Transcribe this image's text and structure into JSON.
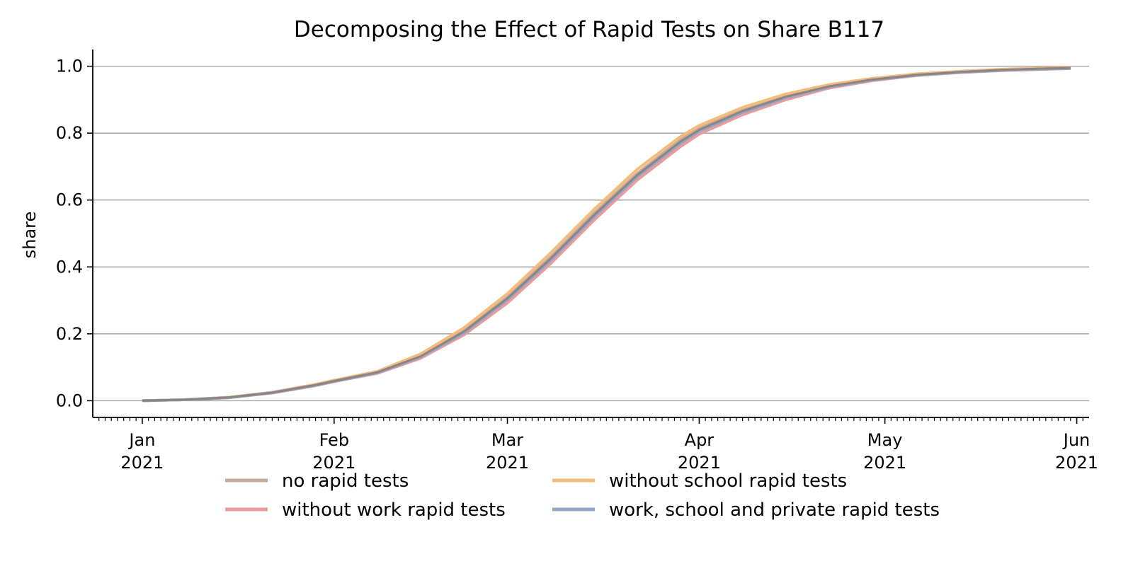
{
  "chart_data": {
    "type": "line",
    "title": "Decomposing the Effect of Rapid Tests on Share B117",
    "xlabel": "",
    "ylabel": "share",
    "xlim": [
      "2020-12-24",
      "2021-06-03"
    ],
    "ylim": [
      -0.05,
      1.05
    ],
    "y_ticks": [
      0.0,
      0.2,
      0.4,
      0.6,
      0.8,
      1.0
    ],
    "y_tick_labels": [
      "0.0",
      "0.2",
      "0.4",
      "0.6",
      "0.8",
      "1.0"
    ],
    "x_ticks": [
      {
        "date": "2021-01-01",
        "line1": "Jan",
        "line2": "2021"
      },
      {
        "date": "2021-02-01",
        "line1": "Feb",
        "line2": "2021"
      },
      {
        "date": "2021-03-01",
        "line1": "Mar",
        "line2": "2021"
      },
      {
        "date": "2021-04-01",
        "line1": "Apr",
        "line2": "2021"
      },
      {
        "date": "2021-05-01",
        "line1": "May",
        "line2": "2021"
      },
      {
        "date": "2021-06-01",
        "line1": "Jun",
        "line2": "2021"
      }
    ],
    "grid": "horizontal",
    "legend": "bottom-center",
    "x": [
      "2021-01-01",
      "2021-01-08",
      "2021-01-15",
      "2021-01-22",
      "2021-01-29",
      "2021-02-01",
      "2021-02-08",
      "2021-02-15",
      "2021-02-22",
      "2021-03-01",
      "2021-03-08",
      "2021-03-15",
      "2021-03-22",
      "2021-03-29",
      "2021-04-01",
      "2021-04-08",
      "2021-04-15",
      "2021-04-22",
      "2021-04-29",
      "2021-05-06",
      "2021-05-13",
      "2021-05-20",
      "2021-05-27",
      "2021-05-31"
    ],
    "series": [
      {
        "name": "no rapid tests",
        "color": "#c4ab9d",
        "values": [
          0.0,
          0.003,
          0.01,
          0.025,
          0.048,
          0.06,
          0.085,
          0.135,
          0.21,
          0.31,
          0.43,
          0.56,
          0.68,
          0.78,
          0.815,
          0.87,
          0.912,
          0.942,
          0.962,
          0.975,
          0.984,
          0.99,
          0.994,
          0.995
        ]
      },
      {
        "name": "without work rapid tests",
        "color": "#ef9a9a",
        "values": [
          0.0,
          0.003,
          0.009,
          0.023,
          0.045,
          0.057,
          0.082,
          0.127,
          0.197,
          0.292,
          0.41,
          0.54,
          0.66,
          0.76,
          0.797,
          0.855,
          0.9,
          0.935,
          0.957,
          0.972,
          0.981,
          0.987,
          0.991,
          0.993
        ]
      },
      {
        "name": "without school rapid tests",
        "color": "#f5bb7a",
        "values": [
          0.0,
          0.003,
          0.01,
          0.025,
          0.049,
          0.061,
          0.088,
          0.14,
          0.218,
          0.32,
          0.442,
          0.572,
          0.692,
          0.79,
          0.823,
          0.877,
          0.917,
          0.945,
          0.964,
          0.977,
          0.985,
          0.991,
          0.995,
          0.996
        ]
      },
      {
        "name": "work, school and private rapid tests",
        "color": "#90a8c4",
        "values": [
          0.0,
          0.003,
          0.009,
          0.024,
          0.046,
          0.058,
          0.084,
          0.131,
          0.203,
          0.302,
          0.42,
          0.55,
          0.67,
          0.77,
          0.806,
          0.862,
          0.906,
          0.938,
          0.959,
          0.973,
          0.982,
          0.988,
          0.992,
          0.994
        ]
      },
      {
        "name": "",
        "color": "#8c8484",
        "values": [
          0.0,
          0.003,
          0.01,
          0.024,
          0.047,
          0.059,
          0.085,
          0.133,
          0.207,
          0.306,
          0.425,
          0.555,
          0.675,
          0.775,
          0.81,
          0.866,
          0.909,
          0.94,
          0.96,
          0.974,
          0.983,
          0.989,
          0.993,
          0.995
        ]
      }
    ]
  }
}
